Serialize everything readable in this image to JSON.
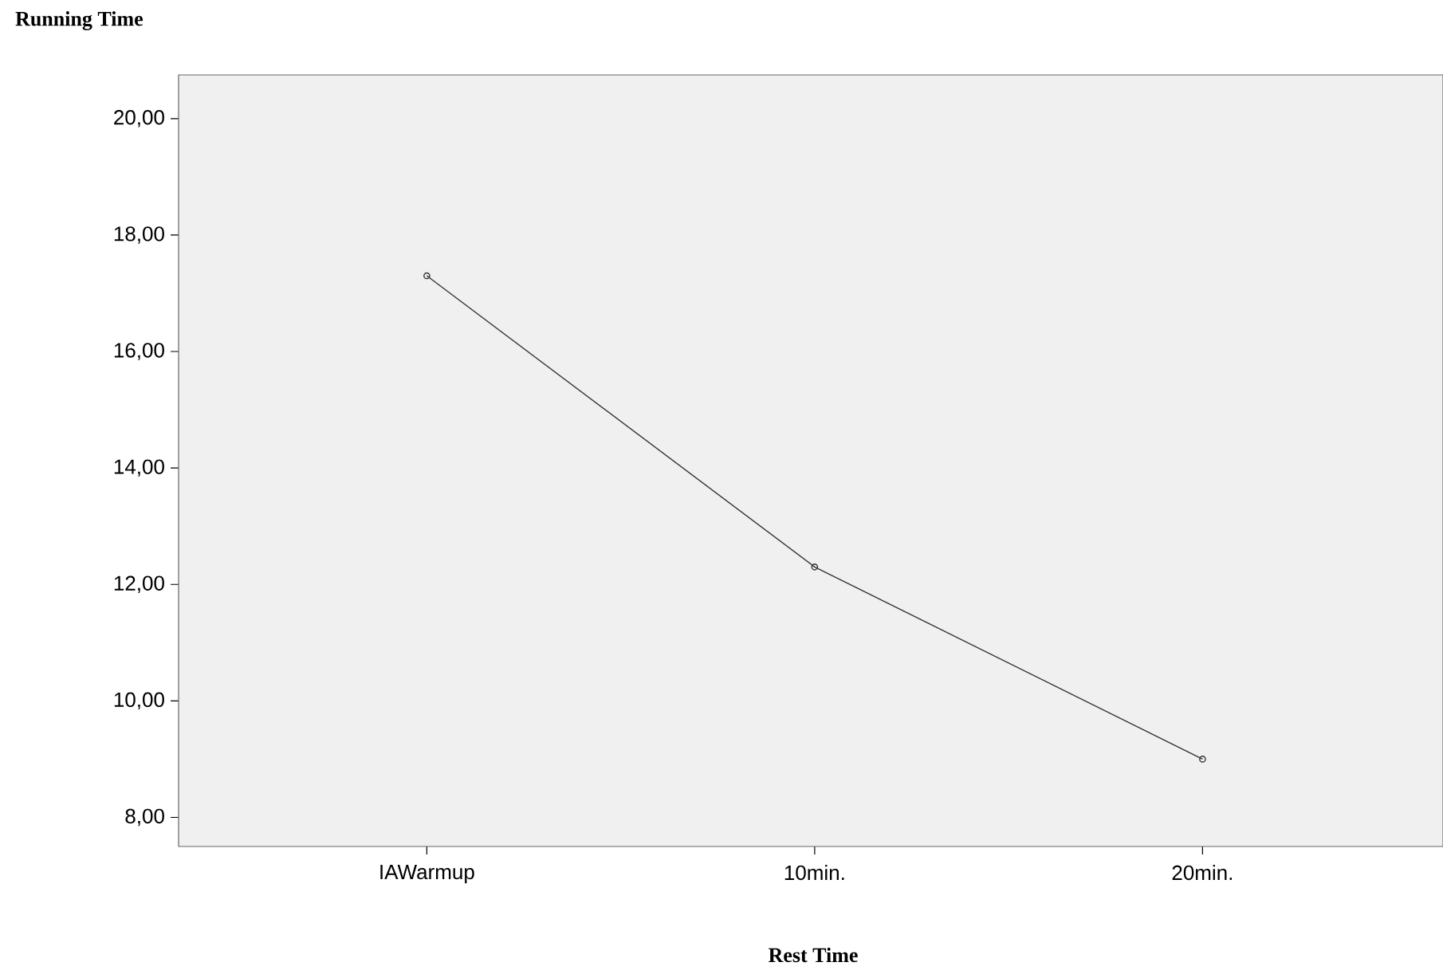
{
  "chart_data": {
    "type": "line",
    "ylabel": "Running Time",
    "xlabel": "Rest Time",
    "categories": [
      "IAWarmup",
      "10min.",
      "20min."
    ],
    "series": [
      {
        "color": "#333333",
        "values": [
          17.3,
          12.3,
          9.0
        ]
      }
    ],
    "ylim": [
      7.5,
      20.75
    ],
    "yticks": [
      {
        "value": 8,
        "label": "8,00"
      },
      {
        "value": 10,
        "label": "10,00"
      },
      {
        "value": 12,
        "label": "12,00"
      },
      {
        "value": 14,
        "label": "14,00"
      },
      {
        "value": 16,
        "label": "16,00"
      },
      {
        "value": 18,
        "label": "18,00"
      },
      {
        "value": 20,
        "label": "20,00"
      }
    ],
    "marker": "circle",
    "line_style": "solid",
    "grid": false,
    "legend": false
  }
}
